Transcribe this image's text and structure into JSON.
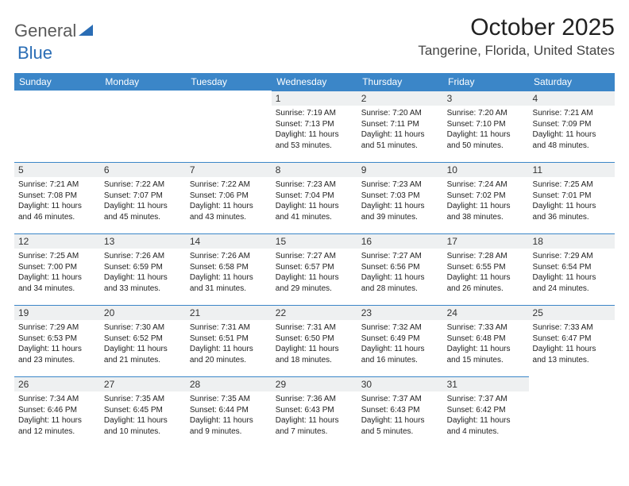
{
  "logo": {
    "text_gray": "General",
    "text_blue": "Blue"
  },
  "title": "October 2025",
  "location": "Tangerine, Florida, United States",
  "day_headers": [
    "Sunday",
    "Monday",
    "Tuesday",
    "Wednesday",
    "Thursday",
    "Friday",
    "Saturday"
  ],
  "colors": {
    "header_bg": "#3b86c8",
    "header_text": "#ffffff",
    "daynum_bg": "#eef0f1",
    "row_border": "#3b86c8"
  },
  "weeks": [
    [
      null,
      null,
      null,
      {
        "n": "1",
        "sunrise": "7:19 AM",
        "sunset": "7:13 PM",
        "daylight": "11 hours and 53 minutes."
      },
      {
        "n": "2",
        "sunrise": "7:20 AM",
        "sunset": "7:11 PM",
        "daylight": "11 hours and 51 minutes."
      },
      {
        "n": "3",
        "sunrise": "7:20 AM",
        "sunset": "7:10 PM",
        "daylight": "11 hours and 50 minutes."
      },
      {
        "n": "4",
        "sunrise": "7:21 AM",
        "sunset": "7:09 PM",
        "daylight": "11 hours and 48 minutes."
      }
    ],
    [
      {
        "n": "5",
        "sunrise": "7:21 AM",
        "sunset": "7:08 PM",
        "daylight": "11 hours and 46 minutes."
      },
      {
        "n": "6",
        "sunrise": "7:22 AM",
        "sunset": "7:07 PM",
        "daylight": "11 hours and 45 minutes."
      },
      {
        "n": "7",
        "sunrise": "7:22 AM",
        "sunset": "7:06 PM",
        "daylight": "11 hours and 43 minutes."
      },
      {
        "n": "8",
        "sunrise": "7:23 AM",
        "sunset": "7:04 PM",
        "daylight": "11 hours and 41 minutes."
      },
      {
        "n": "9",
        "sunrise": "7:23 AM",
        "sunset": "7:03 PM",
        "daylight": "11 hours and 39 minutes."
      },
      {
        "n": "10",
        "sunrise": "7:24 AM",
        "sunset": "7:02 PM",
        "daylight": "11 hours and 38 minutes."
      },
      {
        "n": "11",
        "sunrise": "7:25 AM",
        "sunset": "7:01 PM",
        "daylight": "11 hours and 36 minutes."
      }
    ],
    [
      {
        "n": "12",
        "sunrise": "7:25 AM",
        "sunset": "7:00 PM",
        "daylight": "11 hours and 34 minutes."
      },
      {
        "n": "13",
        "sunrise": "7:26 AM",
        "sunset": "6:59 PM",
        "daylight": "11 hours and 33 minutes."
      },
      {
        "n": "14",
        "sunrise": "7:26 AM",
        "sunset": "6:58 PM",
        "daylight": "11 hours and 31 minutes."
      },
      {
        "n": "15",
        "sunrise": "7:27 AM",
        "sunset": "6:57 PM",
        "daylight": "11 hours and 29 minutes."
      },
      {
        "n": "16",
        "sunrise": "7:27 AM",
        "sunset": "6:56 PM",
        "daylight": "11 hours and 28 minutes."
      },
      {
        "n": "17",
        "sunrise": "7:28 AM",
        "sunset": "6:55 PM",
        "daylight": "11 hours and 26 minutes."
      },
      {
        "n": "18",
        "sunrise": "7:29 AM",
        "sunset": "6:54 PM",
        "daylight": "11 hours and 24 minutes."
      }
    ],
    [
      {
        "n": "19",
        "sunrise": "7:29 AM",
        "sunset": "6:53 PM",
        "daylight": "11 hours and 23 minutes."
      },
      {
        "n": "20",
        "sunrise": "7:30 AM",
        "sunset": "6:52 PM",
        "daylight": "11 hours and 21 minutes."
      },
      {
        "n": "21",
        "sunrise": "7:31 AM",
        "sunset": "6:51 PM",
        "daylight": "11 hours and 20 minutes."
      },
      {
        "n": "22",
        "sunrise": "7:31 AM",
        "sunset": "6:50 PM",
        "daylight": "11 hours and 18 minutes."
      },
      {
        "n": "23",
        "sunrise": "7:32 AM",
        "sunset": "6:49 PM",
        "daylight": "11 hours and 16 minutes."
      },
      {
        "n": "24",
        "sunrise": "7:33 AM",
        "sunset": "6:48 PM",
        "daylight": "11 hours and 15 minutes."
      },
      {
        "n": "25",
        "sunrise": "7:33 AM",
        "sunset": "6:47 PM",
        "daylight": "11 hours and 13 minutes."
      }
    ],
    [
      {
        "n": "26",
        "sunrise": "7:34 AM",
        "sunset": "6:46 PM",
        "daylight": "11 hours and 12 minutes."
      },
      {
        "n": "27",
        "sunrise": "7:35 AM",
        "sunset": "6:45 PM",
        "daylight": "11 hours and 10 minutes."
      },
      {
        "n": "28",
        "sunrise": "7:35 AM",
        "sunset": "6:44 PM",
        "daylight": "11 hours and 9 minutes."
      },
      {
        "n": "29",
        "sunrise": "7:36 AM",
        "sunset": "6:43 PM",
        "daylight": "11 hours and 7 minutes."
      },
      {
        "n": "30",
        "sunrise": "7:37 AM",
        "sunset": "6:43 PM",
        "daylight": "11 hours and 5 minutes."
      },
      {
        "n": "31",
        "sunrise": "7:37 AM",
        "sunset": "6:42 PM",
        "daylight": "11 hours and 4 minutes."
      },
      null
    ]
  ],
  "labels": {
    "sunrise": "Sunrise:",
    "sunset": "Sunset:",
    "daylight": "Daylight:"
  }
}
